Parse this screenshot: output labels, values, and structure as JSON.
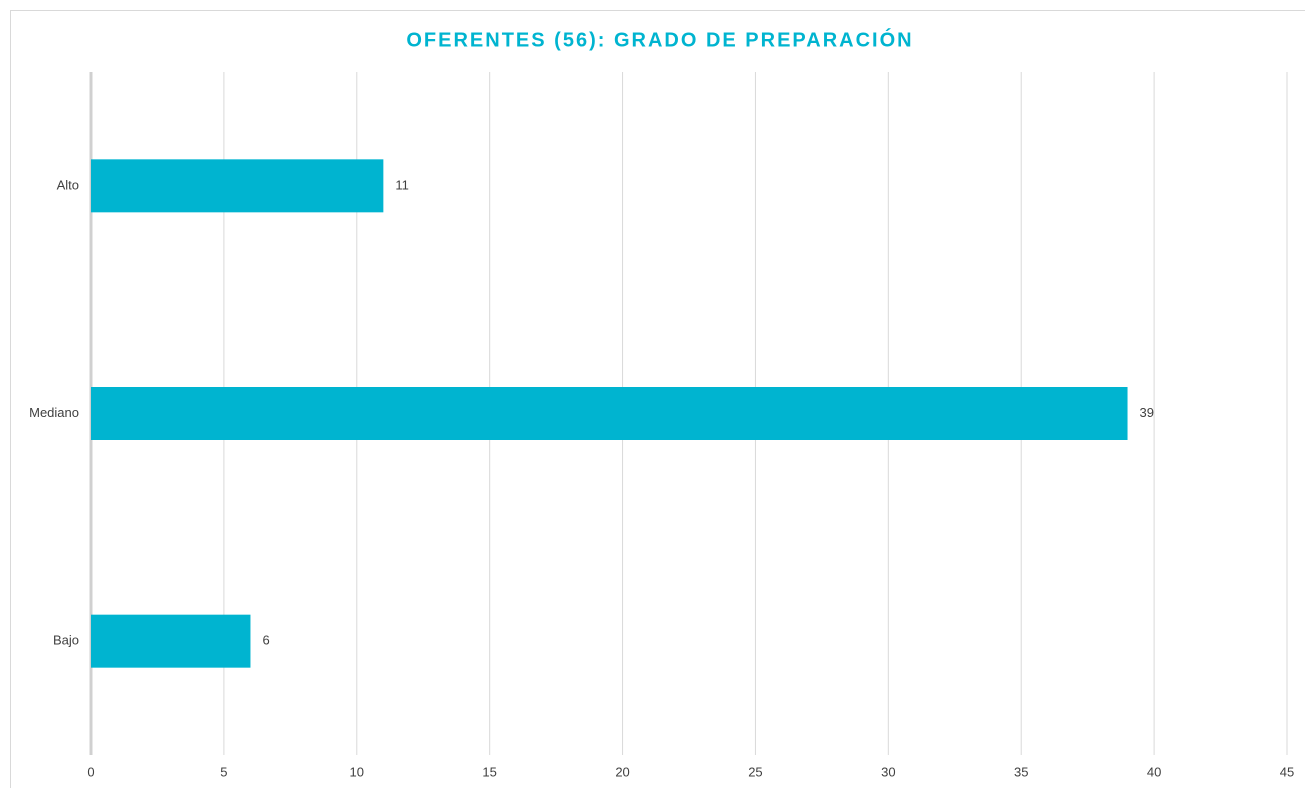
{
  "chart_data": {
    "type": "bar",
    "orientation": "horizontal",
    "title": "OFERENTES (56): GRADO DE PREPARACIÓN",
    "categories": [
      "Alto",
      "Mediano",
      "Bajo"
    ],
    "values": [
      11,
      39,
      6
    ],
    "color": "#00b4d0",
    "xlim": [
      0,
      45
    ],
    "xticks": [
      0,
      5,
      10,
      15,
      20,
      25,
      30,
      35,
      40,
      45
    ],
    "grid": true
  }
}
